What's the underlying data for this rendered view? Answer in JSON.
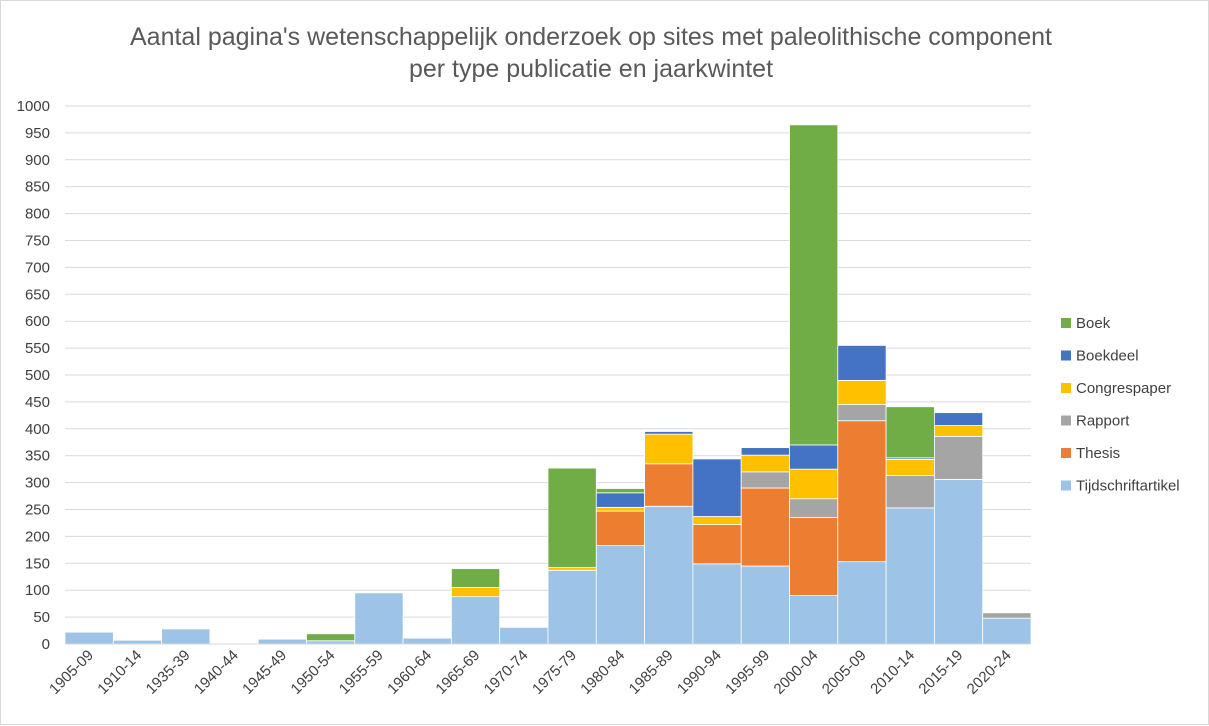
{
  "chart_data": {
    "type": "bar",
    "stacked": true,
    "title": [
      "Aantal pagina's wetenschappelijk onderzoek op sites met paleolithische component",
      "per type publicatie en jaarkwintet"
    ],
    "categories": [
      "1905-09",
      "1910-14",
      "1935-39",
      "1940-44",
      "1945-49",
      "1950-54",
      "1955-59",
      "1960-64",
      "1965-69",
      "1970-74",
      "1975-79",
      "1980-84",
      "1985-89",
      "1990-94",
      "1995-99",
      "2000-04",
      "2005-09",
      "2010-14",
      "2015-19",
      "2020-24"
    ],
    "ylim": [
      0,
      1000
    ],
    "yticks": [
      0,
      50,
      100,
      150,
      200,
      250,
      300,
      350,
      400,
      450,
      500,
      550,
      600,
      650,
      700,
      750,
      800,
      850,
      900,
      950,
      1000
    ],
    "grid": true,
    "legend_position": "right",
    "series": [
      {
        "name": "Tijdschriftartikel",
        "color": "#9dc3e6",
        "values": [
          22,
          7,
          28,
          0,
          9,
          6,
          95,
          11,
          88,
          31,
          137,
          183,
          256,
          149,
          145,
          90,
          153,
          253,
          306,
          48
        ]
      },
      {
        "name": "Thesis",
        "color": "#ed7d31",
        "values": [
          0,
          0,
          0,
          0,
          0,
          0,
          0,
          0,
          0,
          0,
          0,
          64,
          79,
          73,
          145,
          145,
          262,
          0,
          0,
          0
        ]
      },
      {
        "name": "Rapport",
        "color": "#a5a5a5",
        "values": [
          0,
          0,
          0,
          0,
          0,
          0,
          0,
          0,
          0,
          0,
          0,
          0,
          0,
          0,
          30,
          35,
          30,
          60,
          80,
          10
        ]
      },
      {
        "name": "Congrespaper",
        "color": "#ffc000",
        "values": [
          0,
          0,
          0,
          0,
          0,
          0,
          0,
          0,
          17,
          0,
          5,
          7,
          55,
          15,
          31,
          55,
          45,
          30,
          20,
          0
        ]
      },
      {
        "name": "Boekdeel",
        "color": "#4472c4",
        "values": [
          0,
          0,
          0,
          0,
          0,
          0,
          0,
          0,
          0,
          0,
          0,
          27,
          5,
          107,
          14,
          45,
          65,
          3,
          24,
          0
        ]
      },
      {
        "name": "Boek",
        "color": "#70ad47",
        "values": [
          0,
          0,
          0,
          0,
          0,
          13,
          0,
          0,
          35,
          0,
          185,
          8,
          0,
          0,
          0,
          595,
          0,
          95,
          0,
          0
        ]
      }
    ],
    "legend_order": [
      "Boek",
      "Boekdeel",
      "Congrespaper",
      "Rapport",
      "Thesis",
      "Tijdschriftartikel"
    ]
  }
}
